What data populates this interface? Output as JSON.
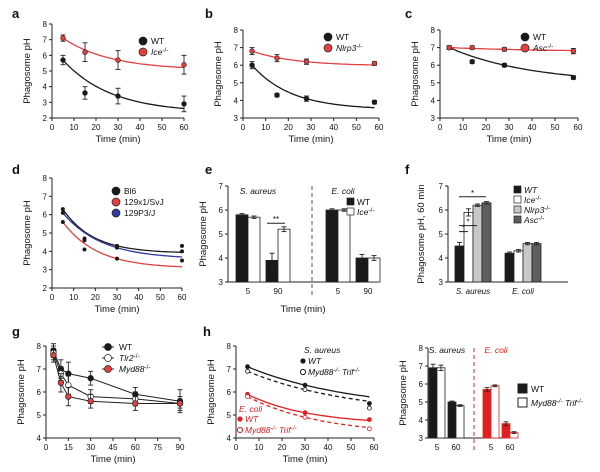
{
  "panels": {
    "a": {
      "label": "a"
    },
    "b": {
      "label": "b"
    },
    "c": {
      "label": "c"
    },
    "d": {
      "label": "d"
    },
    "e": {
      "label": "e"
    },
    "f": {
      "label": "f"
    },
    "g": {
      "label": "g"
    },
    "h": {
      "label": "h"
    }
  },
  "chart_data": [
    {
      "id": "a",
      "type": "line",
      "title": "",
      "xlabel": "Time (min)",
      "ylabel": "Phagosome pH",
      "xlim": [
        0,
        60
      ],
      "ylim": [
        2,
        8
      ],
      "xticks": [
        0,
        10,
        20,
        30,
        40,
        50,
        60
      ],
      "yticks": [
        2,
        3,
        4,
        5,
        6,
        7,
        8
      ],
      "series": [
        {
          "name": "WT",
          "x": [
            5,
            15,
            30,
            60
          ],
          "values": [
            5.7,
            3.6,
            3.4,
            2.9
          ],
          "err": [
            0.3,
            0.4,
            0.5,
            0.5
          ],
          "color": "#1a1a1a"
        },
        {
          "name": "Ice",
          "sup": "-/-",
          "x": [
            5,
            15,
            30,
            60
          ],
          "values": [
            7.1,
            6.2,
            5.7,
            5.4
          ],
          "err": [
            0.2,
            0.6,
            0.6,
            0.6
          ],
          "color": "#e34040"
        }
      ]
    },
    {
      "id": "b",
      "type": "line",
      "title": "",
      "xlabel": "Time (min)",
      "ylabel": "Phagosome pH",
      "xlim": [
        0,
        60
      ],
      "ylim": [
        3,
        8
      ],
      "xticks": [
        0,
        10,
        20,
        30,
        40,
        50,
        60
      ],
      "yticks": [
        3,
        4,
        5,
        6,
        7,
        8
      ],
      "series": [
        {
          "name": "WT",
          "x": [
            4,
            15,
            28,
            58
          ],
          "values": [
            6.0,
            4.3,
            4.1,
            3.9
          ],
          "err": [
            0.2,
            0.1,
            0.15,
            0.1
          ],
          "color": "#1a1a1a"
        },
        {
          "name": "Nlrp3",
          "sup": "-/-",
          "x": [
            4,
            15,
            28,
            58
          ],
          "values": [
            6.8,
            6.4,
            6.2,
            6.1
          ],
          "err": [
            0.2,
            0.2,
            0.15,
            0.1
          ],
          "color": "#e34040"
        }
      ]
    },
    {
      "id": "c",
      "type": "line",
      "title": "",
      "xlabel": "Time (min)",
      "ylabel": "Phagosome pH",
      "xlim": [
        0,
        60
      ],
      "ylim": [
        3,
        8
      ],
      "xticks": [
        0,
        10,
        20,
        30,
        40,
        50,
        60
      ],
      "yticks": [
        3,
        4,
        5,
        6,
        7,
        8
      ],
      "series": [
        {
          "name": "WT",
          "x": [
            4,
            14,
            28,
            58
          ],
          "values": [
            7.0,
            6.2,
            6.0,
            5.3
          ],
          "err": [
            0.1,
            0.1,
            0.1,
            0.1
          ],
          "color": "#1a1a1a"
        },
        {
          "name": "Asc",
          "sup": "-/-",
          "x": [
            4,
            14,
            28,
            58
          ],
          "values": [
            7.0,
            7.0,
            6.9,
            6.8
          ],
          "err": [
            0.1,
            0.1,
            0.1,
            0.15
          ],
          "color": "#e34040"
        }
      ]
    },
    {
      "id": "d",
      "type": "line",
      "title": "",
      "xlabel": "Time (min)",
      "ylabel": "Phagosome pH",
      "xlim": [
        0,
        60
      ],
      "ylim": [
        2,
        8
      ],
      "xticks": [
        0,
        10,
        20,
        30,
        40,
        50,
        60
      ],
      "yticks": [
        2,
        3,
        4,
        5,
        6,
        7,
        8
      ],
      "series": [
        {
          "name": "Bl6",
          "x": [
            5,
            15,
            30,
            60
          ],
          "values": [
            6.3,
            4.7,
            4.3,
            4.3
          ],
          "color": "#1a1a1a"
        },
        {
          "name": "129x1/SvJ",
          "x": [
            5,
            15,
            30,
            60
          ],
          "values": [
            5.6,
            4.1,
            3.6,
            3.5
          ],
          "color": "#e34040"
        },
        {
          "name": "129P3/J",
          "x": [
            5,
            15,
            30,
            60
          ],
          "values": [
            6.1,
            4.6,
            4.2,
            4.0
          ],
          "color": "#2e3a9c"
        }
      ]
    },
    {
      "id": "e",
      "type": "bar",
      "title": "",
      "xlabel": "Time (min)",
      "ylabel": "Phagosome pH",
      "ylim": [
        3,
        7
      ],
      "yticks": [
        3,
        4,
        5,
        6,
        7
      ],
      "groups": [
        "S. aureus",
        "E. coli"
      ],
      "categories": [
        "5",
        "90",
        "5",
        "90"
      ],
      "series": [
        {
          "name": "WT",
          "values": [
            5.8,
            3.9,
            6.0,
            4.0
          ],
          "err": [
            0.05,
            0.3,
            0.05,
            0.15
          ],
          "color": "#1a1a1a"
        },
        {
          "name": "Ice",
          "sup": "-/-",
          "values": [
            5.7,
            5.2,
            6.0,
            4.0
          ],
          "err": [
            0.05,
            0.1,
            0.05,
            0.1
          ],
          "color": "#ffffff"
        }
      ],
      "annotations": [
        "**"
      ]
    },
    {
      "id": "f",
      "type": "bar",
      "title": "",
      "xlabel": "",
      "ylabel": "Phagosome pH, 60 min",
      "ylim": [
        3,
        7
      ],
      "yticks": [
        3,
        4,
        5,
        6,
        7
      ],
      "categories": [
        "S. aureus",
        "E. coli"
      ],
      "series": [
        {
          "name": "WT",
          "values": [
            4.5,
            4.2
          ],
          "err": [
            0.15,
            0.05
          ],
          "color": "#1a1a1a"
        },
        {
          "name": "Ice",
          "sup": "-/-",
          "values": [
            5.9,
            4.3
          ],
          "err": [
            0.15,
            0.05
          ],
          "color": "#ffffff"
        },
        {
          "name": "Nlrp3",
          "sup": "-/-",
          "values": [
            6.2,
            4.6
          ],
          "err": [
            0.05,
            0.05
          ],
          "color": "#c8c8c8"
        },
        {
          "name": "Asc",
          "sup": "-/-",
          "values": [
            6.3,
            4.6
          ],
          "err": [
            0.05,
            0.05
          ],
          "color": "#5e5e5e"
        }
      ],
      "annotations": [
        "*",
        "*",
        "*"
      ]
    },
    {
      "id": "g",
      "type": "line",
      "title": "",
      "xlabel": "Time (min)",
      "ylabel": "Phagosome pH",
      "xlim": [
        0,
        90
      ],
      "ylim": [
        4,
        8
      ],
      "xticks": [
        0,
        15,
        30,
        45,
        60,
        75,
        90
      ],
      "yticks": [
        4,
        5,
        6,
        7,
        8
      ],
      "series": [
        {
          "name": "WT",
          "x": [
            5,
            10,
            15,
            30,
            60,
            90
          ],
          "values": [
            7.8,
            7.0,
            6.8,
            6.6,
            5.9,
            5.6
          ],
          "err": [
            0.3,
            0.4,
            0.5,
            0.3,
            0.3,
            0.5
          ],
          "color": "#1a1a1a"
        },
        {
          "name": "Tlr2",
          "sup": "-/-",
          "x": [
            5,
            10,
            15,
            30,
            60,
            90
          ],
          "values": [
            7.7,
            6.8,
            6.3,
            5.8,
            5.7,
            5.5
          ],
          "err": [
            0.3,
            0.3,
            0.4,
            0.3,
            0.3,
            0.2
          ],
          "color": "#ffffff"
        },
        {
          "name": "Myd88",
          "sup": "-/-",
          "x": [
            5,
            10,
            15,
            30,
            60,
            90
          ],
          "values": [
            7.6,
            6.4,
            5.8,
            5.6,
            5.5,
            5.5
          ],
          "err": [
            0.3,
            0.4,
            0.4,
            0.3,
            0.3,
            0.3
          ],
          "color": "#e34040"
        }
      ]
    },
    {
      "id": "h1",
      "type": "line",
      "title": "",
      "xlabel": "Time (min)",
      "ylabel": "Phagosome pH",
      "xlim": [
        0,
        60
      ],
      "ylim": [
        4,
        8
      ],
      "xticks": [
        0,
        10,
        20,
        30,
        40,
        50,
        60
      ],
      "yticks": [
        4,
        5,
        6,
        7,
        8
      ],
      "series": [
        {
          "name": "S. aureus WT",
          "x": [
            5,
            30,
            58
          ],
          "values": [
            7.1,
            6.3,
            5.5
          ],
          "color": "#1a1a1a"
        },
        {
          "name": "S. aureus Myd88-/- Trif-/-",
          "x": [
            5,
            30,
            58
          ],
          "values": [
            6.9,
            6.1,
            5.3
          ],
          "color": "#1a1a1a"
        },
        {
          "name": "E. coli WT",
          "x": [
            5,
            30,
            58
          ],
          "values": [
            5.9,
            5.1,
            4.8
          ],
          "color": "#e02020"
        },
        {
          "name": "E. coli Myd88-/- Trif-/-",
          "x": [
            5,
            30,
            58
          ],
          "values": [
            5.8,
            4.9,
            4.4
          ],
          "color": "#e02020"
        }
      ]
    },
    {
      "id": "h2",
      "type": "bar",
      "title": "",
      "xlabel": "",
      "ylabel": "Phagosome pH",
      "ylim": [
        3,
        8
      ],
      "yticks": [
        3,
        4,
        5,
        6,
        7,
        8
      ],
      "groups": [
        "S. aureus",
        "E. coli"
      ],
      "categories": [
        "5",
        "60",
        "5",
        "60"
      ],
      "series": [
        {
          "name": "WT",
          "values": [
            6.9,
            5.0,
            5.7,
            3.8
          ],
          "err": [
            0.2,
            0.05,
            0.1,
            0.1
          ],
          "color": "#1a1a1a"
        },
        {
          "name": "Myd88-/- Trif-/-",
          "values": [
            6.9,
            4.8,
            5.9,
            3.3
          ],
          "err": [
            0.15,
            0.05,
            0.05,
            0.05
          ],
          "color": "#ffffff"
        }
      ]
    }
  ]
}
